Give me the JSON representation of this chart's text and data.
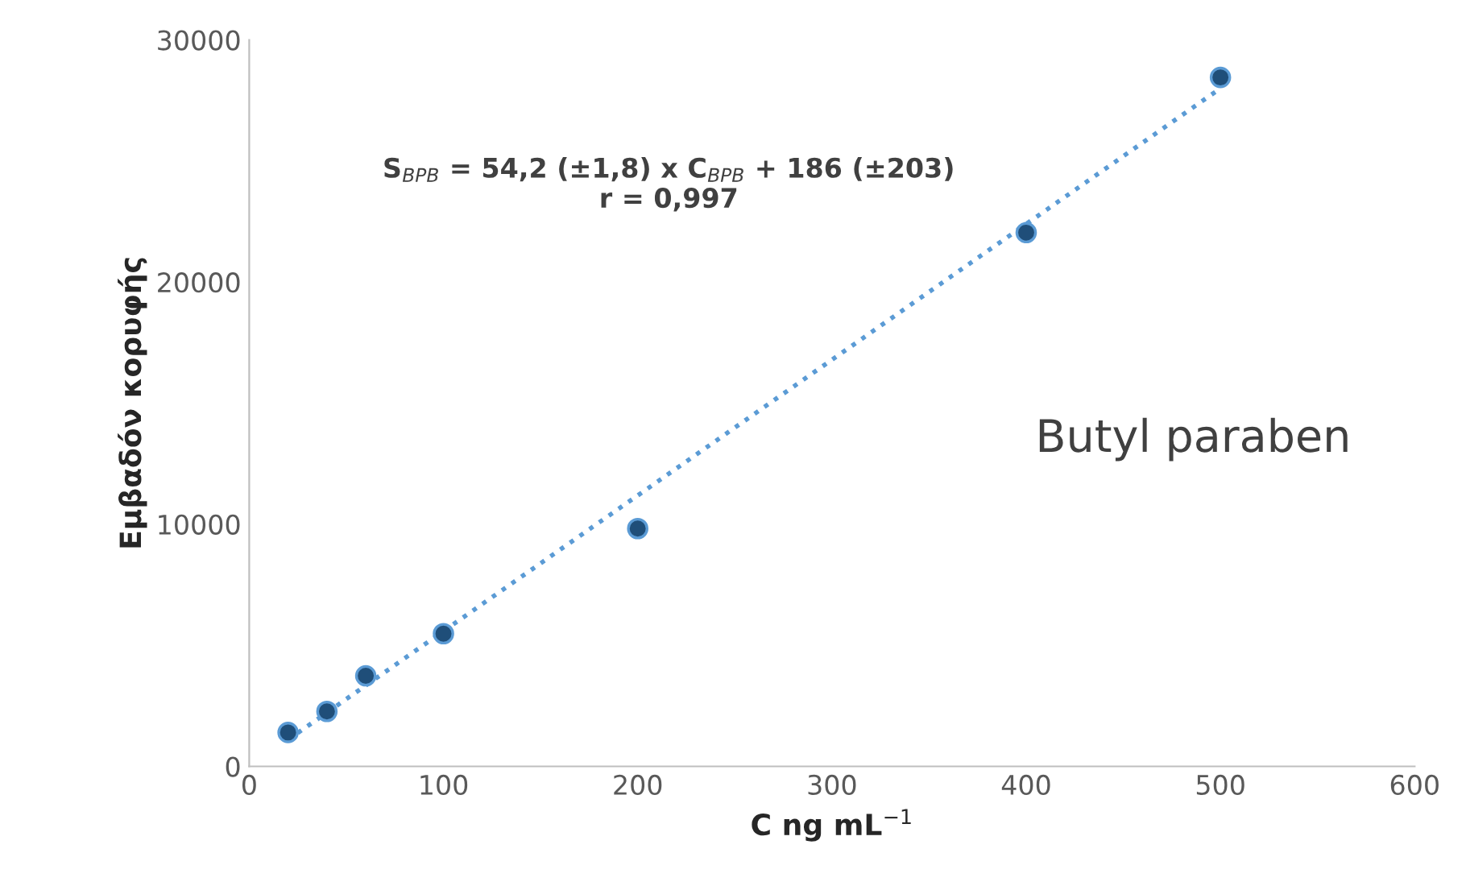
{
  "chart_data": {
    "type": "scatter",
    "xlabel": "C ng mL$^{−1}$",
    "ylabel": "Εμβαδόν κορυφής",
    "annotations": [
      "S$_{BPB}$ = 54,2 (±1,8) x C$_{BPB}$ + 186 (±203)\nr = 0,997",
      "Butyl paraben"
    ],
    "series": [
      {
        "color": "#1f4e79",
        "marker": "circle",
        "x": [
          20,
          40,
          60,
          100,
          200,
          400,
          500
        ],
        "values": [
          1400,
          2270,
          3740,
          5480,
          9820,
          22040,
          28450
        ]
      },
      {
        "type": "line",
        "color": "#5b9bd5",
        "line_style": "dotted",
        "marker": "none",
        "x": [
          20,
          500
        ],
        "values": [
          1100,
          28000
        ]
      }
    ],
    "xlim": [
      0,
      600
    ],
    "xticks": [
      0,
      100,
      200,
      300,
      400,
      500,
      600
    ],
    "ylim": [
      0,
      30000
    ],
    "yticks": [
      0,
      10000,
      20000,
      30000
    ],
    "grid": false,
    "legend": false
  }
}
